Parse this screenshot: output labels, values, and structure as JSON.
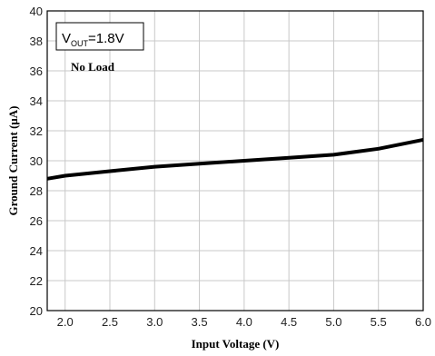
{
  "chart_data": {
    "type": "line",
    "title": "",
    "xlabel": "Input Voltage (V)",
    "ylabel": "Ground Current (μA)",
    "xlim": [
      1.8,
      6.0
    ],
    "ylim": [
      20,
      40
    ],
    "x_ticks": [
      "2.0",
      "2.5",
      "3.0",
      "3.5",
      "4.0",
      "4.5",
      "5.0",
      "5.5",
      "6.0"
    ],
    "y_ticks": [
      "20",
      "22",
      "24",
      "26",
      "28",
      "30",
      "32",
      "34",
      "36",
      "38",
      "40"
    ],
    "grid": true,
    "annotation": {
      "vout_main": "V",
      "vout_sub": "OUT",
      "vout_value": "=1.8V",
      "load": "No Load"
    },
    "series": [
      {
        "color": "#000000",
        "x": [
          1.8,
          2.0,
          2.5,
          3.0,
          3.5,
          4.0,
          4.5,
          5.0,
          5.5,
          6.0
        ],
        "y": [
          28.8,
          29.0,
          29.3,
          29.6,
          29.8,
          30.0,
          30.2,
          30.4,
          30.8,
          31.4
        ]
      }
    ]
  }
}
